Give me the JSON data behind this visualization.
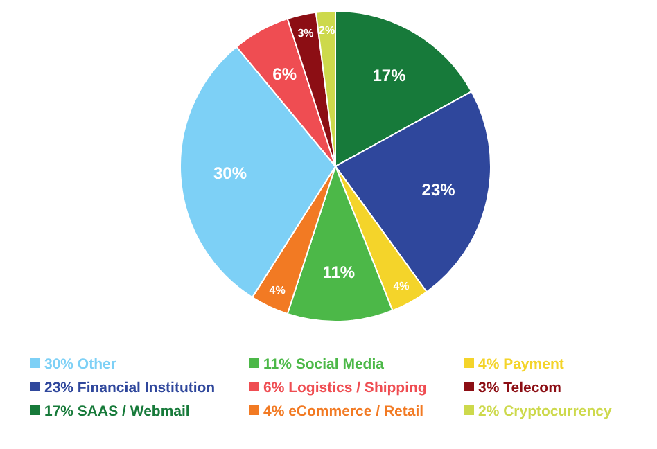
{
  "chart_data": {
    "type": "pie",
    "categories": [
      "17% SAAS / Webmail",
      "23% Financial Institution",
      "4% Payment",
      "11% Social Media",
      "4% eCommerce / Retail",
      "30% Other",
      "6% Logistics / Shipping",
      "3% Telecom",
      "2% Cryptocurrency"
    ],
    "values": [
      17,
      23,
      4,
      11,
      4,
      30,
      6,
      3,
      2
    ],
    "value_labels": [
      "17%",
      "23%",
      "4%",
      "11%",
      "4%",
      "30%",
      "6%",
      "3%",
      "2%"
    ],
    "colors": [
      "#177a3a",
      "#2f479c",
      "#f4d42a",
      "#4cb848",
      "#f27a23",
      "#7dd0f6",
      "#ef4d52",
      "#8c0e14",
      "#cdd94c"
    ],
    "legend": "bottom"
  }
}
